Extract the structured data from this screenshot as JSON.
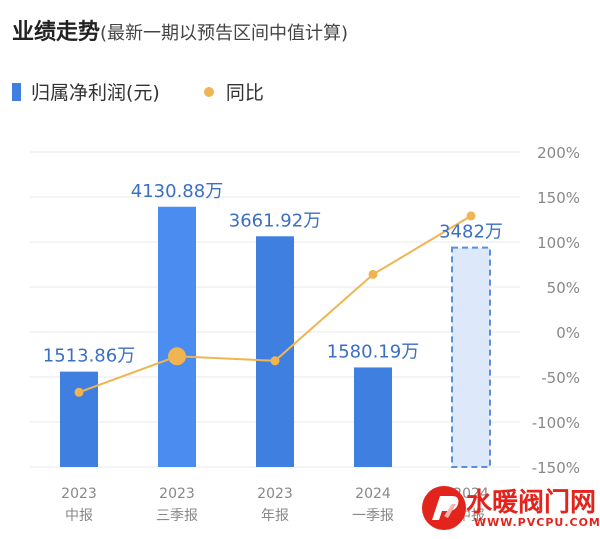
{
  "header": {
    "title": "业绩走势",
    "subtitle": "(最新一期以预告区间中值计算)"
  },
  "legend": {
    "bar_label": "归属净利润(元)",
    "line_label": "同比"
  },
  "colors": {
    "bar": "#3f7fe0",
    "bar_highlight": "#4a8cf0",
    "forecast_fill": "#dde9fb",
    "forecast_border": "#5a8fdc",
    "line": "#f0b450",
    "label_text": "#3a6fc4",
    "grid": "#e8e8e8",
    "axis_text": "#888888"
  },
  "chart_data": {
    "type": "bar",
    "categories": [
      [
        "2023",
        "中报"
      ],
      [
        "2023",
        "三季报"
      ],
      [
        "2023",
        "年报"
      ],
      [
        "2024",
        "一季报"
      ],
      [
        "2024",
        "中报"
      ]
    ],
    "series": [
      {
        "name": "归属净利润(元)",
        "type": "bar",
        "values": [
          1513.86,
          4130.88,
          3661.92,
          1580.19,
          3482
        ],
        "labels": [
          "1513.86万",
          "4130.88万",
          "3661.92万",
          "1580.19万",
          "3482万"
        ],
        "forecast": [
          false,
          false,
          false,
          false,
          true
        ],
        "highlight": [
          false,
          true,
          false,
          false,
          false
        ]
      },
      {
        "name": "同比",
        "type": "line",
        "axis": "right",
        "values": [
          -67,
          -27,
          -32,
          64,
          129
        ],
        "highlight": [
          false,
          true,
          false,
          false,
          false
        ]
      }
    ],
    "y_right": {
      "ticks": [
        200,
        150,
        100,
        50,
        0,
        -50,
        -100,
        -150
      ],
      "tick_labels": [
        "200%",
        "150%",
        "100%",
        "50%",
        "0%",
        "-50%",
        "-100%",
        "-150%"
      ],
      "range": [
        -150,
        200
      ]
    },
    "y_left": {
      "range": [
        0,
        5000
      ]
    },
    "grid": true,
    "legend_position": "top-left"
  },
  "watermark": {
    "text": "水暖阀门网",
    "url": "WWW.PVCPU.COM"
  }
}
